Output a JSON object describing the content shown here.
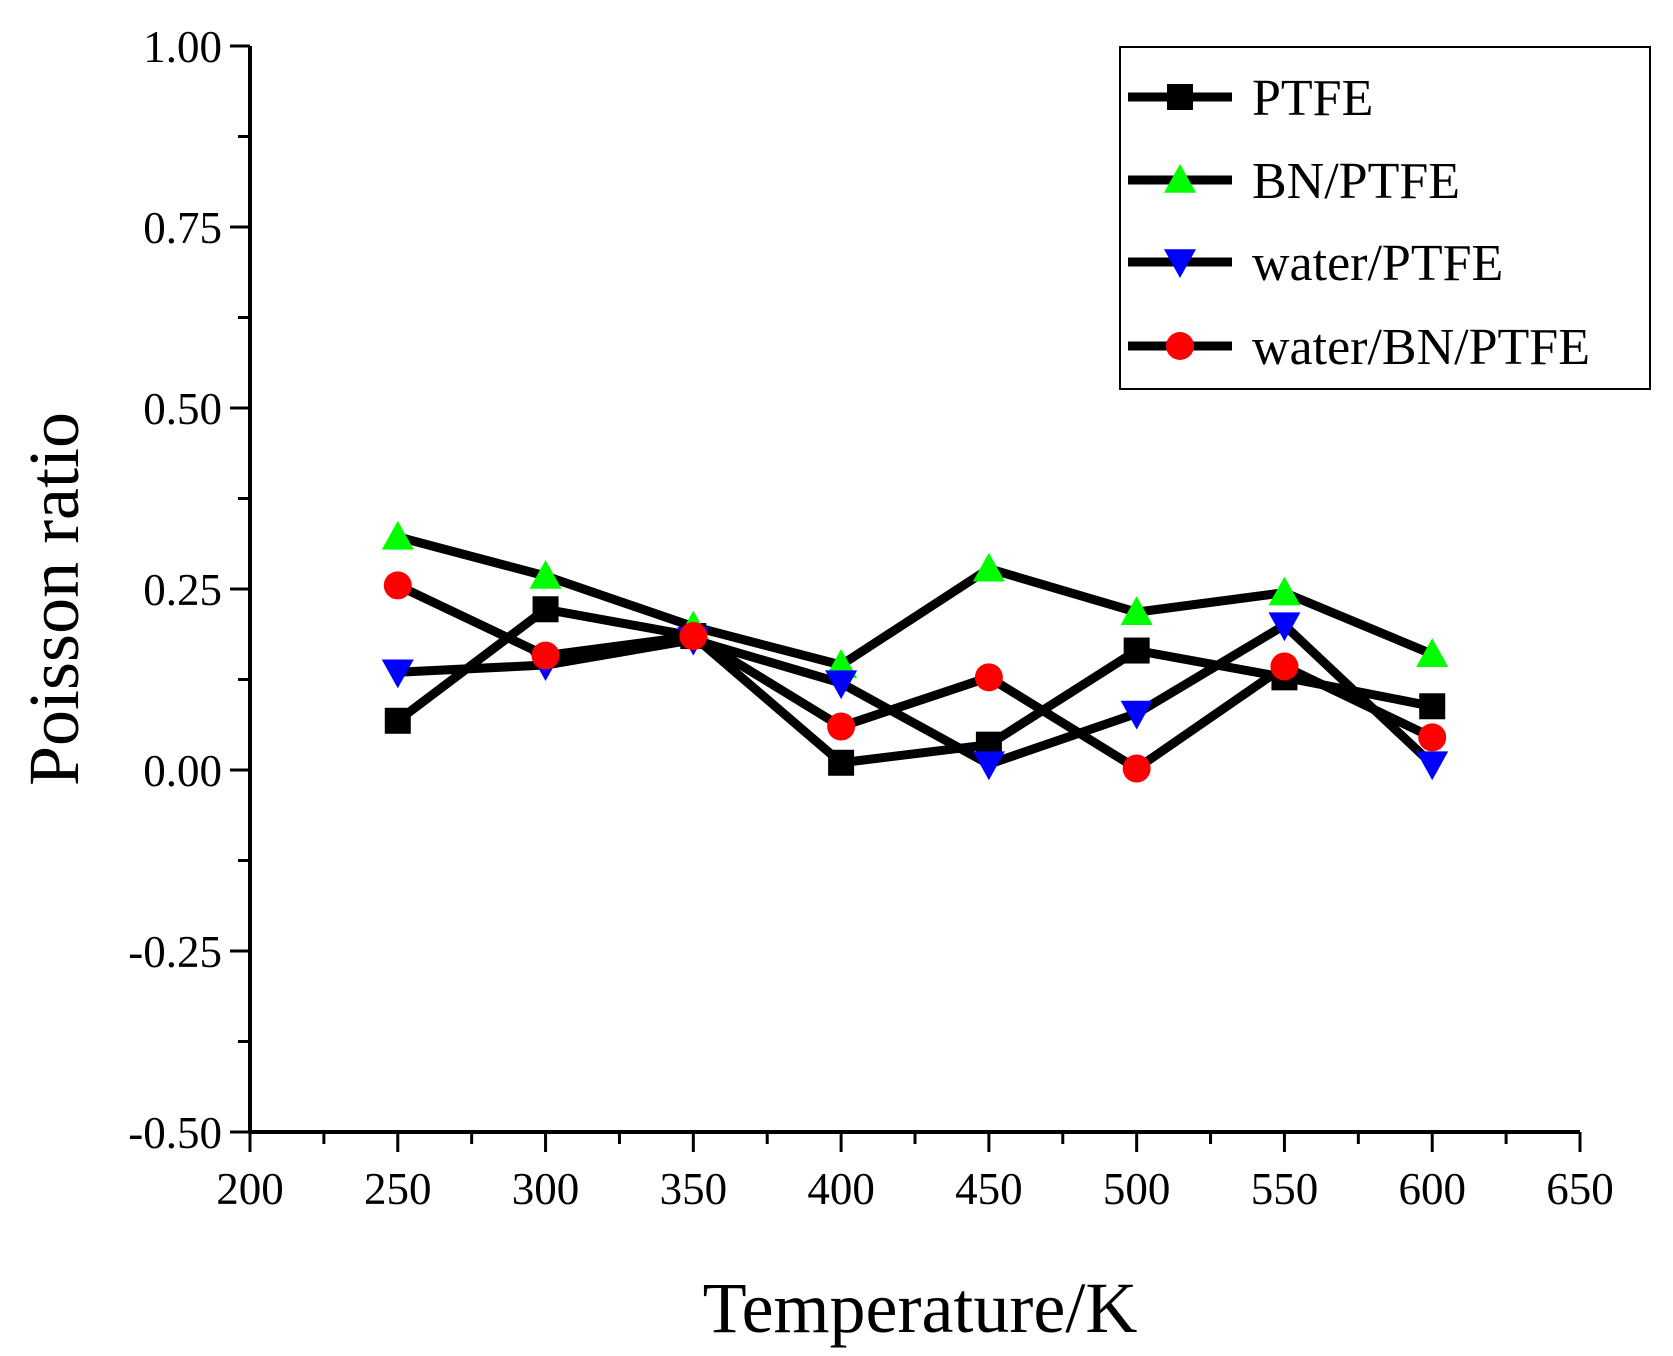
{
  "chart_data": {
    "type": "line",
    "title": "",
    "xlabel": "Temperature/K",
    "ylabel": "Poisson ratio",
    "xlim": [
      200,
      650
    ],
    "ylim": [
      -0.5,
      1.0
    ],
    "x_ticks": [
      "200",
      "250",
      "300",
      "350",
      "400",
      "450",
      "500",
      "550",
      "600",
      "650"
    ],
    "y_ticks": [
      "-0.50",
      "-0.25",
      "0.00",
      "0.25",
      "0.50",
      "0.75",
      "1.00"
    ],
    "x_tick_values": [
      200,
      250,
      300,
      350,
      400,
      450,
      500,
      550,
      600,
      650
    ],
    "y_tick_values": [
      -0.5,
      -0.25,
      0.0,
      0.25,
      0.5,
      0.75,
      1.0
    ],
    "x": [
      250,
      300,
      350,
      400,
      450,
      500,
      550,
      600
    ],
    "grid": false,
    "legend_position": "top-right",
    "series": [
      {
        "name": "PTFE",
        "marker": "square",
        "color": "#000000",
        "values": [
          0.068,
          0.222,
          0.185,
          0.01,
          0.035,
          0.165,
          0.128,
          0.088
        ]
      },
      {
        "name": "BN/PTFE",
        "marker": "triangle-up",
        "color": "#00ff00",
        "values": [
          0.322,
          0.268,
          0.198,
          0.145,
          0.278,
          0.218,
          0.245,
          0.16
        ]
      },
      {
        "name": "water/PTFE",
        "marker": "triangle-down",
        "color": "#0000ff",
        "values": [
          0.135,
          0.145,
          0.18,
          0.12,
          0.008,
          0.078,
          0.2,
          0.008
        ]
      },
      {
        "name": "water/BN/PTFE",
        "marker": "circle",
        "color": "#ff0000",
        "values": [
          0.255,
          0.158,
          0.185,
          0.06,
          0.128,
          0.002,
          0.143,
          0.045
        ]
      }
    ]
  }
}
